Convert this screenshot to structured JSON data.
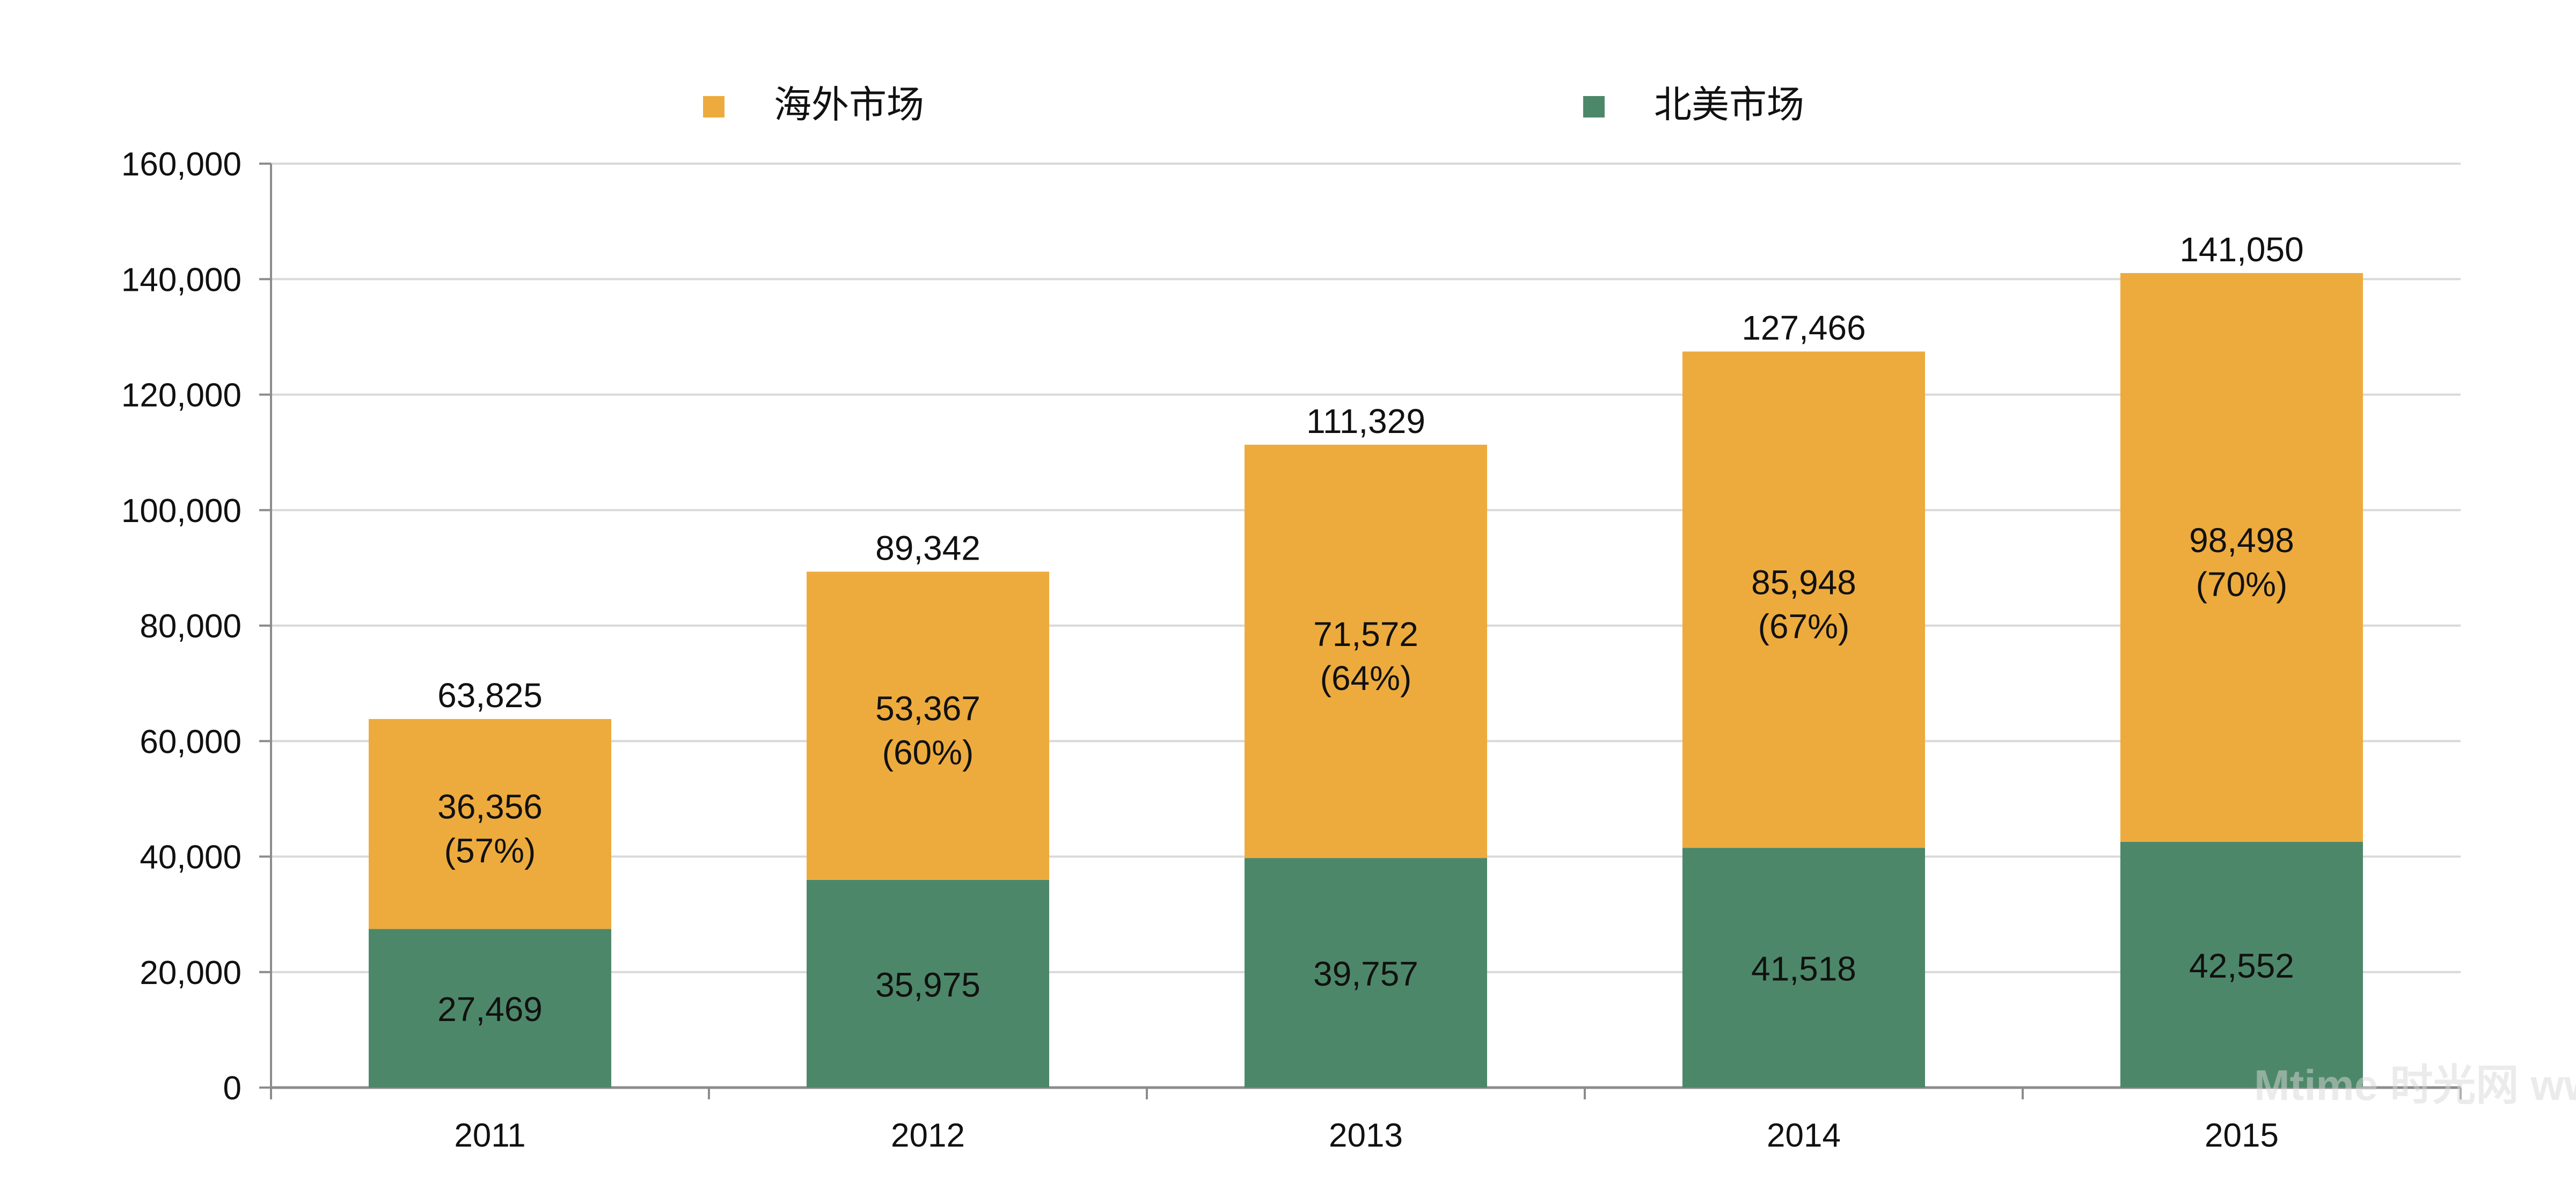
{
  "chart_data": {
    "type": "bar",
    "stacked": true,
    "categories": [
      "2011",
      "2012",
      "2013",
      "2014",
      "2015"
    ],
    "series": [
      {
        "name": "北美市场",
        "color": "#4d8769",
        "values": [
          27469,
          35975,
          39757,
          41518,
          42552
        ],
        "labels": [
          "27,469",
          "35,975",
          "39,757",
          "41,518",
          "42,552"
        ]
      },
      {
        "name": "海外市场",
        "color": "#edab3e",
        "values": [
          36356,
          53367,
          71572,
          85948,
          98498
        ],
        "labels": [
          "36,356",
          "53,367",
          "71,572",
          "85,948",
          "98,498"
        ],
        "share_labels": [
          "(57%)",
          "(60%)",
          "(64%)",
          "(67%)",
          "(70%)"
        ]
      }
    ],
    "totals": [
      63825,
      89342,
      111329,
      127466,
      141050
    ],
    "total_labels": [
      "63,825",
      "89,342",
      "111,329",
      "127,466",
      "141,050"
    ],
    "ylim": [
      0,
      160000
    ],
    "yticks": [
      0,
      20000,
      40000,
      60000,
      80000,
      100000,
      120000,
      140000,
      160000
    ],
    "ytick_labels": [
      "0",
      "20,000",
      "40,000",
      "60,000",
      "80,000",
      "100,000",
      "120,000",
      "140,000",
      "160,000"
    ],
    "grid": true,
    "legend_position": "top",
    "legend_order": [
      "海外市场",
      "北美市场"
    ],
    "watermark": "Mtime 时光网 www.mtime.com"
  }
}
